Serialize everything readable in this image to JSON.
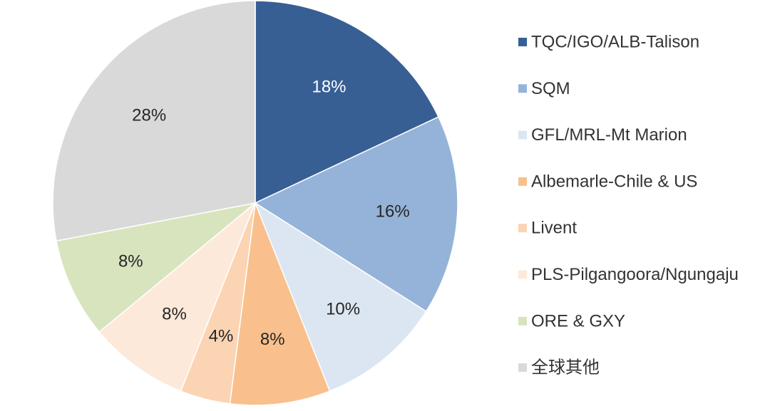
{
  "chart_data": {
    "type": "pie",
    "slices": [
      {
        "name": "TQC/IGO/ALB-Talison",
        "value": 18,
        "label": "18%",
        "color": "#375F94",
        "label_color": "#ffffff"
      },
      {
        "name": "SQM",
        "value": 16,
        "label": "16%",
        "color": "#95B3D8",
        "label_color": "#262626"
      },
      {
        "name": "GFL/MRL-Mt Marion",
        "value": 10,
        "label": "10%",
        "color": "#DCE6F2",
        "label_color": "#262626"
      },
      {
        "name": "Albemarle-Chile & US",
        "value": 8,
        "label": "8%",
        "color": "#F9C08D",
        "label_color": "#262626"
      },
      {
        "name": "Livent",
        "value": 4,
        "label": "4%",
        "color": "#FBD4B4",
        "label_color": "#262626"
      },
      {
        "name": "PLS-Pilgangoora/Ngungaju",
        "value": 8,
        "label": "8%",
        "color": "#FDE9D9",
        "label_color": "#262626"
      },
      {
        "name": "ORE & GXY",
        "value": 8,
        "label": "8%",
        "color": "#D7E4BD",
        "label_color": "#262626"
      },
      {
        "name": "全球其他",
        "value": 28,
        "label": "28%",
        "color": "#D9D9D9",
        "label_color": "#262626"
      }
    ],
    "legend_position": "right"
  }
}
